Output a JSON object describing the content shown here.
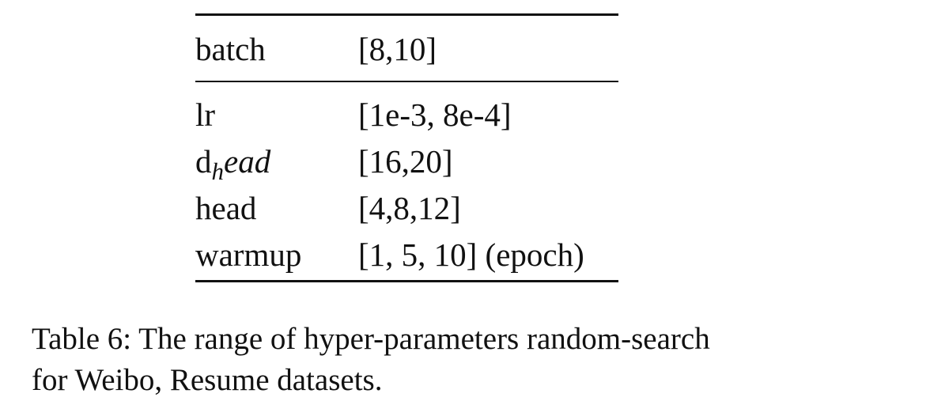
{
  "table": {
    "header": {
      "param": "batch",
      "range": "[8,10]"
    },
    "rows": [
      {
        "param": "lr",
        "range": "[1e-3, 8e-4]"
      },
      {
        "param_base": "d",
        "param_sub": "h",
        "param_rest": "ead",
        "range": "[16,20]"
      },
      {
        "param": "head",
        "range": "[4,8,12]"
      },
      {
        "param": "warmup",
        "range": "[1, 5, 10] (epoch)"
      }
    ]
  },
  "caption": {
    "line1": "Table 6: The range of hyper-parameters random-search",
    "line2": "for Weibo, Resume datasets."
  }
}
